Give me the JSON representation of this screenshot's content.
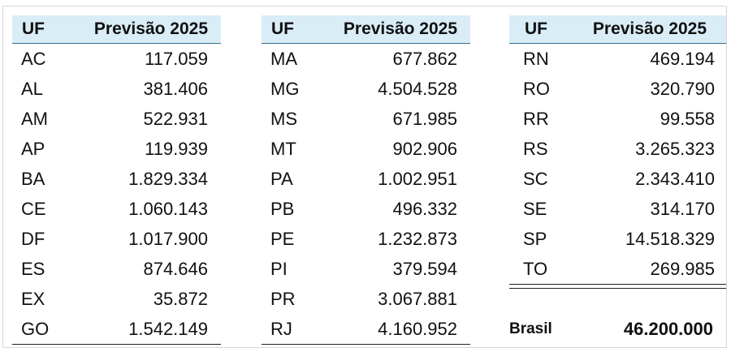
{
  "headers": {
    "uf": "UF",
    "previsao": "Previsão 2025"
  },
  "tables": [
    {
      "rows": [
        {
          "uf": "AC",
          "valor": "117.059"
        },
        {
          "uf": "AL",
          "valor": "381.406"
        },
        {
          "uf": "AM",
          "valor": "522.931"
        },
        {
          "uf": "AP",
          "valor": "119.939"
        },
        {
          "uf": "BA",
          "valor": "1.829.334"
        },
        {
          "uf": "CE",
          "valor": "1.060.143"
        },
        {
          "uf": "DF",
          "valor": "1.017.900"
        },
        {
          "uf": "ES",
          "valor": "874.646"
        },
        {
          "uf": "EX",
          "valor": "35.872"
        },
        {
          "uf": "GO",
          "valor": "1.542.149"
        }
      ]
    },
    {
      "rows": [
        {
          "uf": "MA",
          "valor": "677.862"
        },
        {
          "uf": "MG",
          "valor": "4.504.528"
        },
        {
          "uf": "MS",
          "valor": "671.985"
        },
        {
          "uf": "MT",
          "valor": "902.906"
        },
        {
          "uf": "PA",
          "valor": "1.002.951"
        },
        {
          "uf": "PB",
          "valor": "496.332"
        },
        {
          "uf": "PE",
          "valor": "1.232.873"
        },
        {
          "uf": "PI",
          "valor": "379.594"
        },
        {
          "uf": "PR",
          "valor": "3.067.881"
        },
        {
          "uf": "RJ",
          "valor": "4.160.952"
        }
      ]
    },
    {
      "rows": [
        {
          "uf": "RN",
          "valor": "469.194"
        },
        {
          "uf": "RO",
          "valor": "320.790"
        },
        {
          "uf": "RR",
          "valor": "99.558"
        },
        {
          "uf": "RS",
          "valor": "3.265.323"
        },
        {
          "uf": "SC",
          "valor": "2.343.410"
        },
        {
          "uf": "SE",
          "valor": "314.170"
        },
        {
          "uf": "SP",
          "valor": "14.518.329"
        },
        {
          "uf": "TO",
          "valor": "269.985"
        }
      ]
    }
  ],
  "total": {
    "label": "Brasil",
    "value": "46.200.000"
  }
}
